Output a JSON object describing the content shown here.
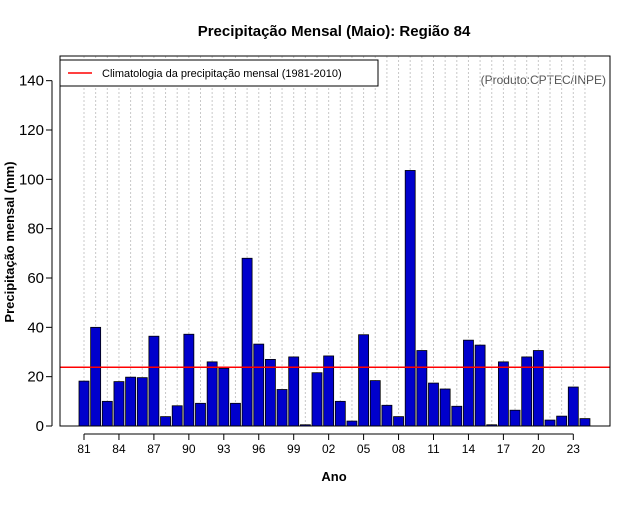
{
  "chart_data": {
    "type": "bar",
    "title": "Precipitação Mensal (Maio): Região 84",
    "xlabel": "Ano",
    "ylabel": "Precipitação mensal (mm)",
    "source_note": "(Produto:CPTEC/INPE)",
    "ylim": [
      0,
      150
    ],
    "yticks": [
      0,
      20,
      40,
      60,
      80,
      100,
      120,
      140
    ],
    "grid": "vertical dotted",
    "legend_position": "top-left",
    "bar_color": "#0000cc",
    "climatology_color": "#ff0000",
    "categories": [
      1981,
      1982,
      1983,
      1984,
      1985,
      1986,
      1987,
      1988,
      1989,
      1990,
      1991,
      1992,
      1993,
      1994,
      1995,
      1996,
      1997,
      1998,
      1999,
      2000,
      2001,
      2002,
      2003,
      2004,
      2005,
      2006,
      2007,
      2008,
      2009,
      2010,
      2011,
      2012,
      2013,
      2014,
      2015,
      2016,
      2017,
      2018,
      2019,
      2020,
      2021,
      2022,
      2023,
      2024
    ],
    "x_tick_labels": [
      {
        "year": 1981,
        "label": "81"
      },
      {
        "year": 1984,
        "label": "84"
      },
      {
        "year": 1987,
        "label": "87"
      },
      {
        "year": 1990,
        "label": "90"
      },
      {
        "year": 1993,
        "label": "93"
      },
      {
        "year": 1996,
        "label": "96"
      },
      {
        "year": 1999,
        "label": "99"
      },
      {
        "year": 2002,
        "label": "02"
      },
      {
        "year": 2005,
        "label": "05"
      },
      {
        "year": 2008,
        "label": "08"
      },
      {
        "year": 2011,
        "label": "11"
      },
      {
        "year": 2014,
        "label": "14"
      },
      {
        "year": 2017,
        "label": "17"
      },
      {
        "year": 2020,
        "label": "20"
      },
      {
        "year": 2023,
        "label": "23"
      }
    ],
    "series": [
      {
        "values": [
          18.2,
          40.0,
          10.0,
          18.0,
          19.8,
          19.6,
          36.4,
          3.8,
          8.2,
          37.2,
          9.2,
          26.0,
          23.4,
          9.2,
          68.0,
          33.2,
          27.0,
          14.8,
          28.0,
          0.5,
          21.6,
          28.4,
          10.0,
          2.0,
          37.0,
          18.4,
          8.4,
          3.8,
          103.6,
          30.6,
          17.4,
          15.0,
          8.0,
          34.8,
          32.8,
          0.5,
          26.0,
          6.4,
          28.0,
          30.6,
          2.4,
          4.0,
          15.8,
          3.0
        ]
      }
    ],
    "climatology": {
      "label": "Climatologia da precipitação mensal (1981-2010)",
      "value": 23.8
    }
  }
}
